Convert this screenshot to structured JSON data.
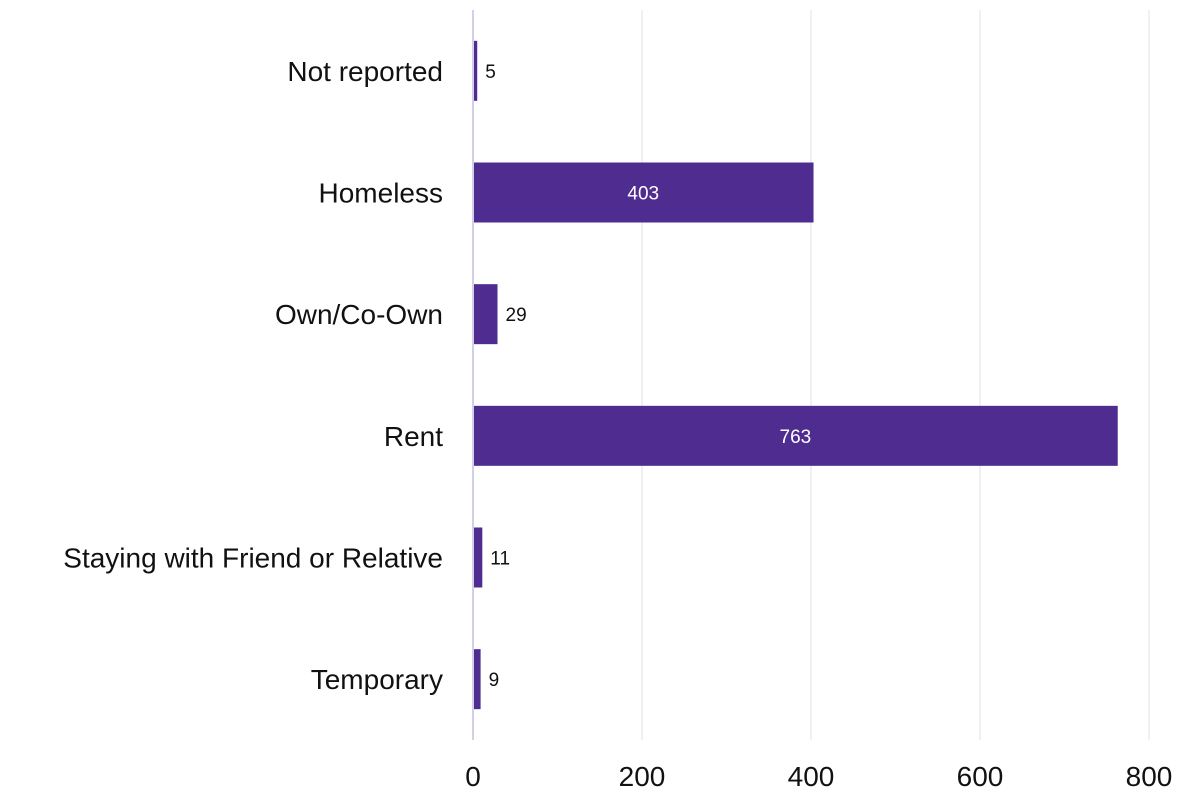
{
  "chart_data": {
    "type": "bar",
    "orientation": "horizontal",
    "title": "",
    "xlabel": "",
    "ylabel": "",
    "categories": [
      "Not reported",
      "Homeless",
      "Own/Co-Own",
      "Rent",
      "Staying with Friend or Relative",
      "Temporary"
    ],
    "values": [
      5,
      403,
      29,
      763,
      11,
      9
    ],
    "xlim": [
      0,
      800
    ],
    "xticks": [
      0,
      200,
      400,
      600,
      800
    ],
    "grid": "vertical",
    "legend": "none",
    "colors": {
      "bar": "#4f2d90",
      "grid": "#ebebeb",
      "axis": "#d3cfe6",
      "label_inside": "#ffffff",
      "label_outside": "#111111"
    }
  }
}
